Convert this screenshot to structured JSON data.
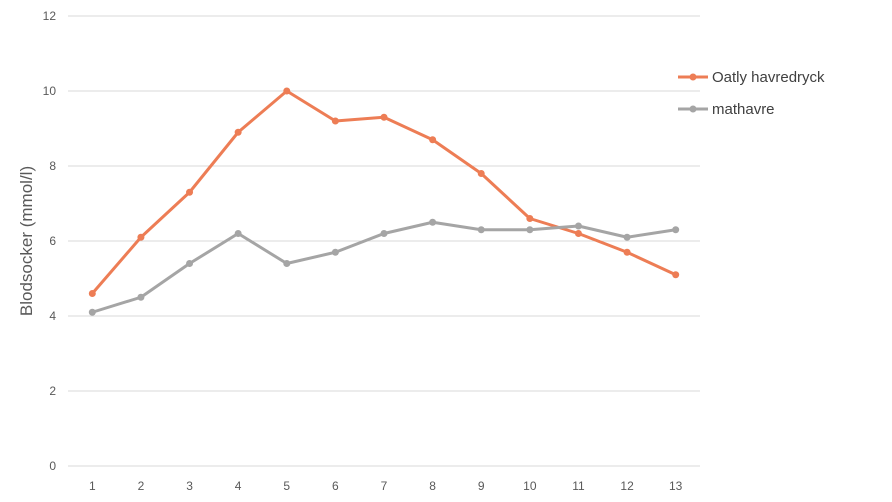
{
  "chart_data": {
    "type": "line",
    "title": "",
    "xlabel": "",
    "ylabel": "Blodsocker (mmol/l)",
    "categories": [
      "1",
      "2",
      "3",
      "4",
      "5",
      "6",
      "7",
      "8",
      "9",
      "10",
      "11",
      "12",
      "13"
    ],
    "ylim": [
      0,
      12
    ],
    "yticks": [
      0,
      2,
      4,
      6,
      8,
      10,
      12
    ],
    "ytick_labels": [
      "0",
      "2",
      "4",
      "6",
      "8",
      "10",
      "12"
    ],
    "grid": true,
    "legend_position": "right",
    "series": [
      {
        "name": "Oatly havredryck",
        "color": "#ED7D55",
        "values": [
          4.6,
          6.1,
          7.3,
          8.9,
          10.0,
          9.2,
          9.3,
          8.7,
          7.8,
          6.6,
          6.2,
          5.7,
          5.1
        ]
      },
      {
        "name": "mathavre",
        "color": "#A5A5A5",
        "values": [
          4.1,
          4.5,
          5.4,
          6.2,
          5.4,
          5.7,
          6.2,
          6.5,
          6.3,
          6.3,
          6.4,
          6.1,
          6.3
        ]
      }
    ]
  }
}
